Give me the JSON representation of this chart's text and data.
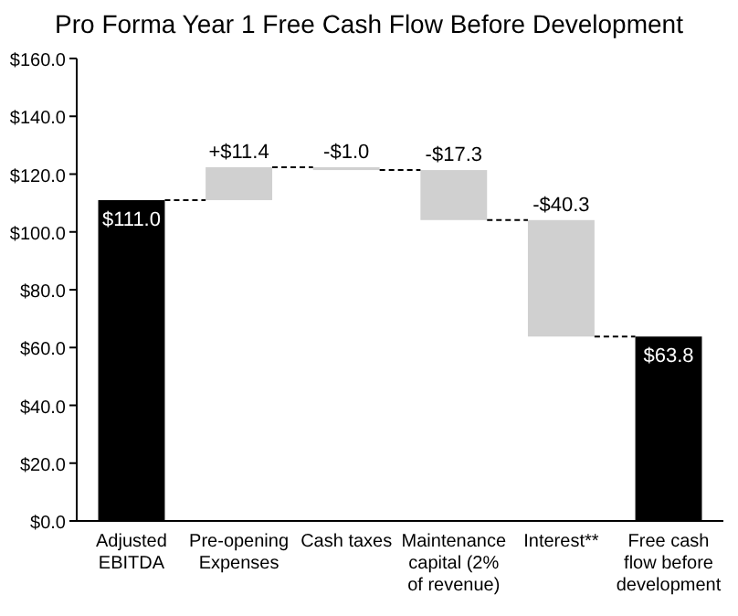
{
  "chart_data": {
    "type": "bar",
    "title": "Pro Forma Year 1 Free Cash Flow Before Development",
    "categories": [
      "Adjusted EBITDA",
      "Pre-opening Expenses",
      "Cash taxes",
      "Maintenance capital (2% of revenue)",
      "Interest**",
      "Free cash flow before development"
    ],
    "values": [
      111.0,
      11.4,
      -1.0,
      -17.3,
      -40.3,
      63.8
    ],
    "base": [
      0,
      111.0,
      122.4,
      121.4,
      104.1,
      0
    ],
    "colors": [
      "#000000",
      "#d0d0d0",
      "#d0d0d0",
      "#d0d0d0",
      "#d0d0d0",
      "#000000"
    ],
    "value_labels": [
      "$111.0",
      "+$11.4",
      "-$1.0",
      "-$17.3",
      "-$40.3",
      "$63.8"
    ],
    "ylim": [
      0,
      160
    ],
    "yticks": [
      {
        "value": 0,
        "label": "$0.0"
      },
      {
        "value": 20,
        "label": "$20.0"
      },
      {
        "value": 40,
        "label": "$40.0"
      },
      {
        "value": 60,
        "label": "$60.0"
      },
      {
        "value": 80,
        "label": "$80.0"
      },
      {
        "value": 100,
        "label": "$100.0"
      },
      {
        "value": 120,
        "label": "$120.0"
      },
      {
        "value": 140,
        "label": "$140.0"
      },
      {
        "value": 160,
        "label": "$160.0"
      }
    ],
    "grid": false
  }
}
